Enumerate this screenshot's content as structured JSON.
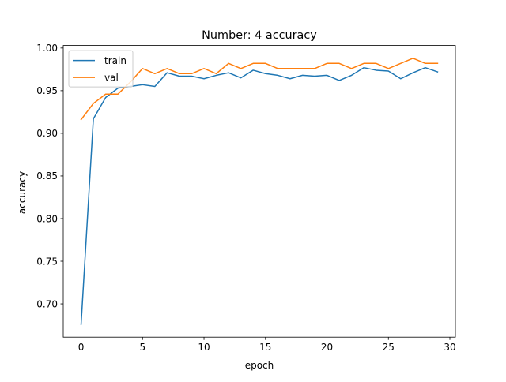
{
  "chart_data": {
    "type": "line",
    "title": "Number: 4 accuracy",
    "xlabel": "epoch",
    "ylabel": "accuracy",
    "xlim": [
      -1.45,
      30.45
    ],
    "ylim": [
      0.661,
      1.003
    ],
    "xticks": [
      0,
      5,
      10,
      15,
      20,
      25,
      30
    ],
    "xtick_labels": [
      "0",
      "5",
      "10",
      "15",
      "20",
      "25",
      "30"
    ],
    "yticks": [
      0.7,
      0.75,
      0.8,
      0.85,
      0.9,
      0.95,
      1.0
    ],
    "ytick_labels": [
      "0.70",
      "0.75",
      "0.80",
      "0.85",
      "0.90",
      "0.95",
      "1.00"
    ],
    "grid": false,
    "legend_position": "upper left",
    "x": [
      0,
      1,
      2,
      3,
      4,
      5,
      6,
      7,
      8,
      9,
      10,
      11,
      12,
      13,
      14,
      15,
      16,
      17,
      18,
      19,
      20,
      21,
      22,
      23,
      24,
      25,
      26,
      27,
      28,
      29
    ],
    "series": [
      {
        "name": "train",
        "color": "#1f77b4",
        "values": [
          0.676,
          0.917,
          0.942,
          0.953,
          0.955,
          0.957,
          0.955,
          0.971,
          0.967,
          0.967,
          0.964,
          0.968,
          0.971,
          0.965,
          0.974,
          0.97,
          0.968,
          0.964,
          0.968,
          0.967,
          0.968,
          0.962,
          0.968,
          0.977,
          0.974,
          0.973,
          0.964,
          0.971,
          0.977,
          0.972
        ]
      },
      {
        "name": "val",
        "color": "#ff7f0e",
        "values": [
          0.916,
          0.935,
          0.946,
          0.946,
          0.96,
          0.976,
          0.97,
          0.976,
          0.97,
          0.97,
          0.976,
          0.97,
          0.982,
          0.976,
          0.982,
          0.982,
          0.976,
          0.976,
          0.976,
          0.976,
          0.982,
          0.982,
          0.976,
          0.982,
          0.982,
          0.976,
          0.982,
          0.988,
          0.982,
          0.982
        ]
      }
    ]
  }
}
